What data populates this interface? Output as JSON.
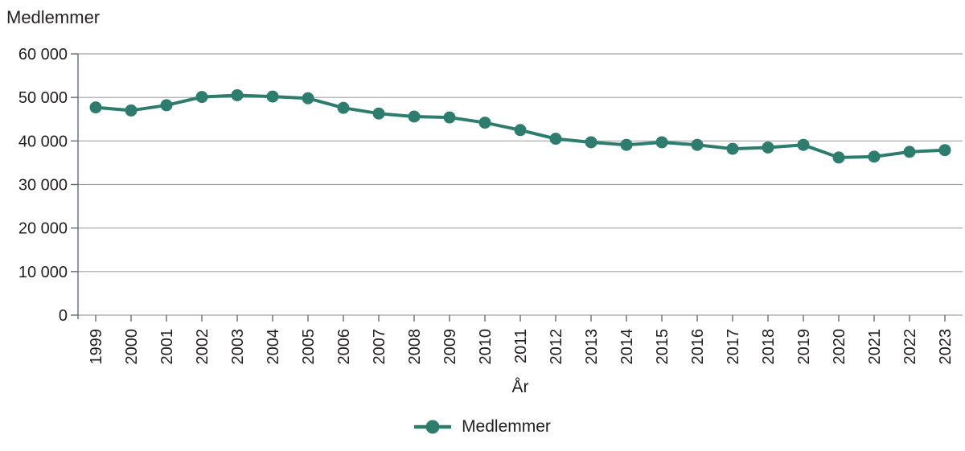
{
  "chart_data": {
    "type": "line",
    "title": "Medlemmer",
    "xlabel": "År",
    "ylabel": "Medlemmer",
    "legend_position": "bottom-center",
    "grid": "horizontal",
    "axis_ranges": {
      "y": [
        0,
        60000
      ],
      "ytick_step": 10000,
      "x_first": "1999",
      "x_last": "2023"
    },
    "ytick_labels": [
      "0",
      "10 000",
      "20 000",
      "30 000",
      "40 000",
      "50 000",
      "60 000"
    ],
    "categories": [
      "1999",
      "2000",
      "2001",
      "2002",
      "2003",
      "2004",
      "2005",
      "2006",
      "2007",
      "2008",
      "2009",
      "2010",
      "2011",
      "2012",
      "2013",
      "2014",
      "2015",
      "2016",
      "2017",
      "2018",
      "2019",
      "2020",
      "2021",
      "2022",
      "2023"
    ],
    "series": [
      {
        "name": "Medlemmer",
        "color": "#2d7d6e",
        "marker": "circle-on-line",
        "values": [
          47700,
          47000,
          48200,
          50100,
          50500,
          50200,
          49800,
          47600,
          46300,
          45600,
          45400,
          44200,
          42500,
          40500,
          39700,
          39100,
          39700,
          39100,
          38200,
          38500,
          39100,
          36200,
          36400,
          37500,
          37900
        ]
      }
    ],
    "colors": {
      "line": "#2d7d6e",
      "grid": "#a3a3a3",
      "axis": "#5d6c7b",
      "text": "#231f20",
      "background": "#ffffff"
    }
  }
}
